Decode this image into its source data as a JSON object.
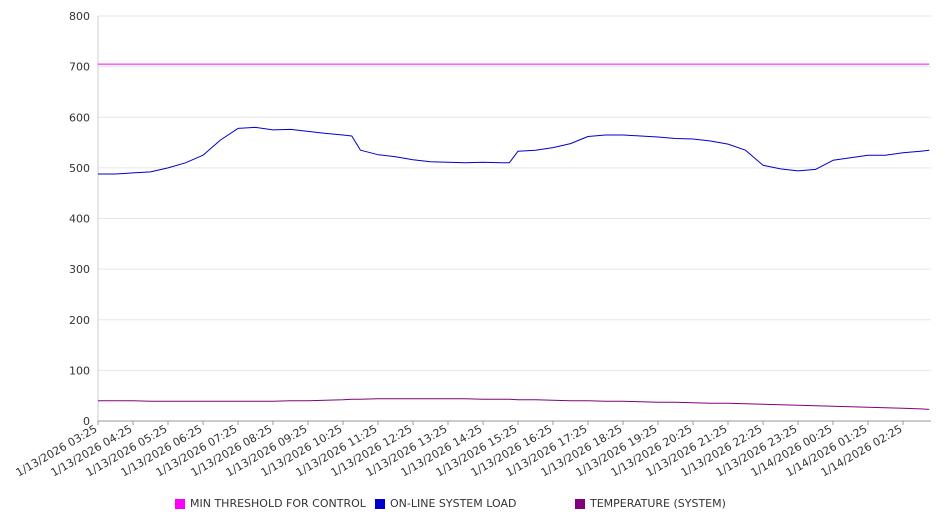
{
  "chart_data": {
    "type": "line",
    "title": "",
    "xlabel": "",
    "ylabel": "",
    "ylim": [
      0,
      800
    ],
    "yticks": [
      "0",
      "100",
      "200",
      "300",
      "400",
      "500",
      "600",
      "700",
      "800"
    ],
    "grid": true,
    "legend_position": "bottom",
    "x_tick_labels": [
      "1/13/2026 03:25",
      "1/13/2026 04:25",
      "1/13/2026 05:25",
      "1/13/2026 06:25",
      "1/13/2026 07:25",
      "1/13/2026 08:25",
      "1/13/2026 09:25",
      "1/13/2026 10:25",
      "1/13/2026 11:25",
      "1/13/2026 12:25",
      "1/13/2026 13:25",
      "1/13/2026 14:25",
      "1/13/2026 15:25",
      "1/13/2026 16:25",
      "1/13/2026 17:25",
      "1/13/2026 18:25",
      "1/13/2026 19:25",
      "1/13/2026 20:25",
      "1/13/2026 21:25",
      "1/13/2026 22:25",
      "1/13/2026 23:25",
      "1/14/2026 00:25",
      "1/14/2026 01:25",
      "1/14/2026 02:25"
    ],
    "x": [
      "1/13/2026 03:25",
      "1/13/2026 03:55",
      "1/13/2026 04:25",
      "1/13/2026 04:55",
      "1/13/2026 05:25",
      "1/13/2026 05:55",
      "1/13/2026 06:25",
      "1/13/2026 06:55",
      "1/13/2026 07:25",
      "1/13/2026 07:55",
      "1/13/2026 08:25",
      "1/13/2026 08:55",
      "1/13/2026 09:25",
      "1/13/2026 09:55",
      "1/13/2026 10:25",
      "1/13/2026 10:40",
      "1/13/2026 10:55",
      "1/13/2026 11:25",
      "1/13/2026 11:55",
      "1/13/2026 12:25",
      "1/13/2026 12:55",
      "1/13/2026 13:25",
      "1/13/2026 13:55",
      "1/13/2026 14:25",
      "1/13/2026 14:55",
      "1/13/2026 15:10",
      "1/13/2026 15:25",
      "1/13/2026 15:55",
      "1/13/2026 16:25",
      "1/13/2026 16:55",
      "1/13/2026 17:25",
      "1/13/2026 17:55",
      "1/13/2026 18:25",
      "1/13/2026 18:55",
      "1/13/2026 19:25",
      "1/13/2026 19:55",
      "1/13/2026 20:25",
      "1/13/2026 20:55",
      "1/13/2026 21:25",
      "1/13/2026 21:55",
      "1/13/2026 22:25",
      "1/13/2026 22:55",
      "1/13/2026 23:25",
      "1/13/2026 23:55",
      "1/14/2026 00:25",
      "1/14/2026 00:55",
      "1/14/2026 01:25",
      "1/14/2026 01:55",
      "1/14/2026 02:25",
      "1/14/2026 02:55",
      "1/14/2026 03:10"
    ],
    "series": [
      {
        "name": "MIN THRESHOLD FOR CONTROL",
        "color": "#ff00ff",
        "values": [
          705,
          705,
          705,
          705,
          705,
          705,
          705,
          705,
          705,
          705,
          705,
          705,
          705,
          705,
          705,
          705,
          705,
          705,
          705,
          705,
          705,
          705,
          705,
          705,
          705,
          705,
          705,
          705,
          705,
          705,
          705,
          705,
          705,
          705,
          705,
          705,
          705,
          705,
          705,
          705,
          705,
          705,
          705,
          705,
          705,
          705,
          705,
          705,
          705,
          705,
          705
        ]
      },
      {
        "name": "ON-LINE SYSTEM LOAD",
        "color": "#0000cc",
        "values": [
          488,
          488,
          490,
          492,
          500,
          510,
          525,
          555,
          578,
          580,
          575,
          576,
          572,
          568,
          565,
          563,
          535,
          526,
          522,
          516,
          512,
          511,
          510,
          511,
          510,
          510,
          533,
          535,
          540,
          548,
          562,
          565,
          565,
          563,
          561,
          558,
          557,
          553,
          547,
          535,
          505,
          498,
          494,
          497,
          515,
          520,
          525,
          525,
          530,
          533,
          535
        ]
      },
      {
        "name": "TEMPERATURE (SYSTEM)",
        "color": "#800080",
        "values": [
          40,
          40,
          40,
          39,
          39,
          39,
          39,
          39,
          39,
          39,
          39,
          40,
          40,
          41,
          42,
          43,
          43,
          44,
          44,
          44,
          44,
          44,
          44,
          43,
          43,
          43,
          42,
          42,
          41,
          40,
          40,
          39,
          39,
          38,
          37,
          37,
          36,
          35,
          35,
          34,
          33,
          32,
          31,
          30,
          29,
          28,
          27,
          26,
          25,
          24,
          23
        ]
      }
    ]
  }
}
